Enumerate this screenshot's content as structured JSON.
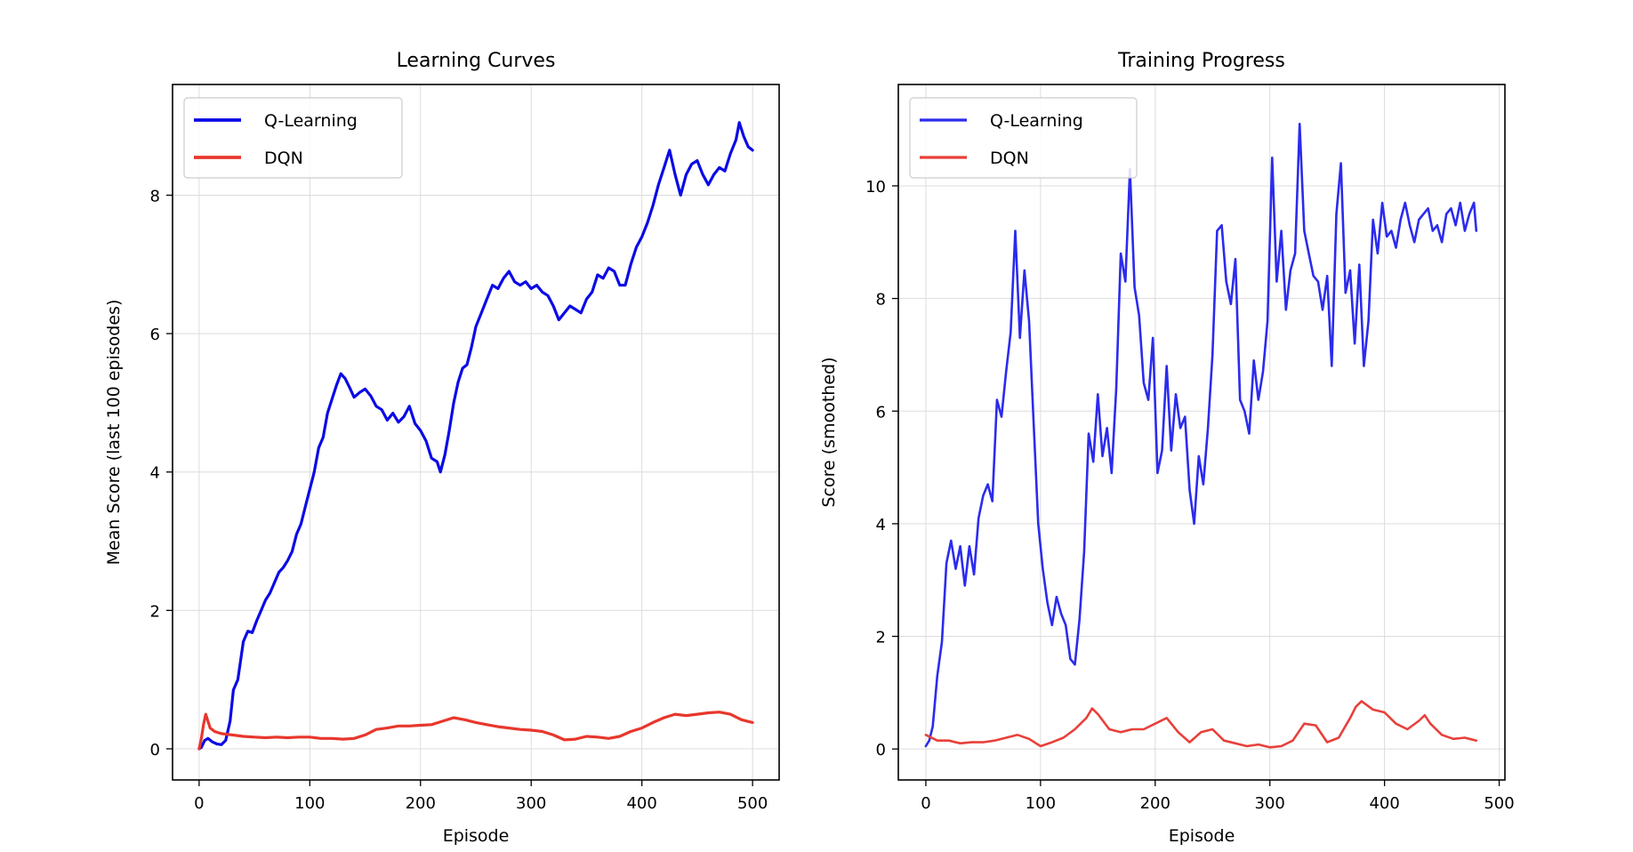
{
  "chart_data": [
    {
      "type": "line",
      "title": "Learning Curves",
      "xlabel": "Episode",
      "ylabel": "Mean Score (last 100 episodes)",
      "xlim": [
        -24,
        524
      ],
      "ylim": [
        -0.45,
        9.6
      ],
      "xticks": [
        "0",
        "100",
        "200",
        "300",
        "400",
        "500"
      ],
      "yticks": [
        "0",
        "2",
        "4",
        "6",
        "8"
      ],
      "grid": true,
      "legend": "upper-left",
      "series": [
        {
          "name": "Q-Learning",
          "color": "#0a0ae6",
          "x": [
            0,
            2,
            5,
            8,
            12,
            16,
            20,
            24,
            28,
            31,
            35,
            40,
            44,
            48,
            52,
            56,
            60,
            64,
            68,
            72,
            76,
            80,
            84,
            88,
            92,
            96,
            100,
            104,
            108,
            112,
            116,
            120,
            124,
            128,
            132,
            136,
            140,
            145,
            150,
            155,
            160,
            165,
            170,
            175,
            180,
            185,
            190,
            195,
            200,
            205,
            210,
            215,
            218,
            222,
            226,
            230,
            234,
            238,
            242,
            246,
            250,
            255,
            260,
            265,
            270,
            275,
            280,
            285,
            290,
            295,
            300,
            305,
            310,
            315,
            320,
            325,
            330,
            335,
            340,
            345,
            350,
            355,
            360,
            365,
            370,
            375,
            380,
            385,
            390,
            395,
            400,
            405,
            410,
            415,
            420,
            425,
            430,
            435,
            440,
            445,
            450,
            455,
            460,
            465,
            470,
            475,
            480,
            485,
            488,
            492,
            496,
            500
          ],
          "values": [
            0,
            0.02,
            0.12,
            0.15,
            0.1,
            0.07,
            0.06,
            0.12,
            0.4,
            0.85,
            1.0,
            1.55,
            1.7,
            1.68,
            1.85,
            2.0,
            2.15,
            2.25,
            2.4,
            2.55,
            2.62,
            2.72,
            2.85,
            3.1,
            3.25,
            3.5,
            3.75,
            4.0,
            4.35,
            4.5,
            4.85,
            5.05,
            5.25,
            5.42,
            5.35,
            5.22,
            5.08,
            5.15,
            5.2,
            5.1,
            4.95,
            4.9,
            4.75,
            4.85,
            4.72,
            4.8,
            4.95,
            4.7,
            4.6,
            4.45,
            4.2,
            4.15,
            4.0,
            4.25,
            4.6,
            5.0,
            5.3,
            5.5,
            5.55,
            5.8,
            6.1,
            6.3,
            6.5,
            6.7,
            6.65,
            6.8,
            6.9,
            6.75,
            6.7,
            6.75,
            6.65,
            6.7,
            6.6,
            6.55,
            6.4,
            6.2,
            6.3,
            6.4,
            6.35,
            6.3,
            6.5,
            6.6,
            6.85,
            6.8,
            6.95,
            6.9,
            6.7,
            6.7,
            7.0,
            7.25,
            7.4,
            7.6,
            7.85,
            8.15,
            8.4,
            8.65,
            8.3,
            8.0,
            8.3,
            8.45,
            8.5,
            8.3,
            8.15,
            8.3,
            8.4,
            8.35,
            8.6,
            8.8,
            9.05,
            8.85,
            8.7,
            8.65
          ]
        },
        {
          "name": "DQN",
          "color": "#e8372c",
          "x": [
            0,
            2,
            4,
            6,
            8,
            10,
            14,
            20,
            30,
            40,
            50,
            60,
            70,
            80,
            90,
            100,
            110,
            120,
            130,
            140,
            150,
            160,
            170,
            180,
            190,
            200,
            210,
            220,
            230,
            240,
            250,
            260,
            270,
            280,
            290,
            300,
            310,
            320,
            330,
            340,
            350,
            360,
            370,
            380,
            390,
            400,
            410,
            420,
            430,
            440,
            450,
            460,
            470,
            480,
            490,
            500
          ],
          "values": [
            0,
            0.15,
            0.35,
            0.5,
            0.4,
            0.3,
            0.25,
            0.22,
            0.2,
            0.18,
            0.17,
            0.16,
            0.17,
            0.16,
            0.17,
            0.17,
            0.15,
            0.15,
            0.14,
            0.15,
            0.2,
            0.28,
            0.3,
            0.33,
            0.33,
            0.34,
            0.35,
            0.4,
            0.45,
            0.42,
            0.38,
            0.35,
            0.32,
            0.3,
            0.28,
            0.27,
            0.25,
            0.2,
            0.13,
            0.14,
            0.18,
            0.17,
            0.15,
            0.18,
            0.25,
            0.3,
            0.38,
            0.45,
            0.5,
            0.48,
            0.5,
            0.52,
            0.53,
            0.5,
            0.42,
            0.38
          ]
        }
      ]
    },
    {
      "type": "line",
      "title": "Training Progress",
      "xlabel": "Episode",
      "ylabel": "Score (smoothed)",
      "xlim": [
        -24,
        505
      ],
      "ylim": [
        -0.55,
        11.8
      ],
      "xticks": [
        "0",
        "100",
        "200",
        "300",
        "400",
        "500"
      ],
      "yticks": [
        "0",
        "2",
        "4",
        "6",
        "8",
        "10"
      ],
      "grid": true,
      "legend": "upper-left",
      "series": [
        {
          "name": "Q-Learning",
          "color": "#2b2bee",
          "x": [
            0,
            3,
            6,
            10,
            14,
            18,
            22,
            26,
            30,
            34,
            38,
            42,
            46,
            50,
            54,
            58,
            62,
            66,
            70,
            74,
            78,
            82,
            86,
            90,
            94,
            98,
            102,
            106,
            110,
            114,
            118,
            122,
            126,
            130,
            134,
            138,
            142,
            146,
            150,
            154,
            158,
            162,
            166,
            170,
            174,
            178,
            182,
            186,
            190,
            194,
            198,
            202,
            206,
            210,
            214,
            218,
            222,
            226,
            230,
            234,
            238,
            242,
            246,
            250,
            254,
            258,
            262,
            266,
            270,
            274,
            278,
            282,
            286,
            290,
            294,
            298,
            302,
            306,
            310,
            314,
            318,
            322,
            326,
            330,
            334,
            338,
            342,
            346,
            350,
            354,
            358,
            362,
            366,
            370,
            374,
            378,
            382,
            386,
            390,
            394,
            398,
            402,
            406,
            410,
            414,
            418,
            422,
            426,
            430,
            434,
            438,
            442,
            446,
            450,
            454,
            458,
            462,
            466,
            470,
            474,
            478,
            480
          ],
          "values": [
            0.05,
            0.15,
            0.4,
            1.3,
            1.9,
            3.3,
            3.7,
            3.2,
            3.6,
            2.9,
            3.6,
            3.1,
            4.1,
            4.5,
            4.7,
            4.4,
            6.2,
            5.9,
            6.7,
            7.4,
            9.2,
            7.3,
            8.5,
            7.6,
            5.8,
            4.0,
            3.2,
            2.6,
            2.2,
            2.7,
            2.4,
            2.2,
            1.6,
            1.5,
            2.3,
            3.5,
            5.6,
            5.1,
            6.3,
            5.2,
            5.7,
            4.9,
            6.4,
            8.8,
            8.3,
            10.3,
            8.2,
            7.7,
            6.5,
            6.2,
            7.3,
            4.9,
            5.3,
            6.8,
            5.3,
            6.3,
            5.7,
            5.9,
            4.6,
            4.0,
            5.2,
            4.7,
            5.7,
            7.0,
            9.2,
            9.3,
            8.3,
            7.9,
            8.7,
            6.2,
            6.0,
            5.6,
            6.9,
            6.2,
            6.7,
            7.6,
            10.5,
            8.3,
            9.2,
            7.8,
            8.5,
            8.8,
            11.1,
            9.2,
            8.8,
            8.4,
            8.3,
            7.8,
            8.4,
            6.8,
            9.5,
            10.4,
            8.1,
            8.5,
            7.2,
            8.6,
            6.8,
            7.6,
            9.4,
            8.8,
            9.7,
            9.1,
            9.2,
            8.9,
            9.4,
            9.7,
            9.3,
            9.0,
            9.4,
            9.5,
            9.6,
            9.2,
            9.3,
            9.0,
            9.5,
            9.6,
            9.3,
            9.7,
            9.2,
            9.5,
            9.7,
            9.2
          ],
          "note": "series truncated display; visible shape approximated"
        },
        {
          "name": "DQN",
          "color": "#e8403a",
          "x": [
            0,
            10,
            20,
            30,
            40,
            50,
            60,
            70,
            80,
            90,
            100,
            110,
            120,
            130,
            140,
            145,
            150,
            160,
            170,
            180,
            190,
            200,
            210,
            220,
            230,
            240,
            250,
            260,
            270,
            280,
            290,
            300,
            310,
            320,
            330,
            340,
            350,
            360,
            370,
            375,
            380,
            390,
            400,
            410,
            420,
            430,
            435,
            440,
            450,
            460,
            470,
            480
          ],
          "values": [
            0.25,
            0.15,
            0.15,
            0.1,
            0.12,
            0.12,
            0.15,
            0.2,
            0.25,
            0.18,
            0.05,
            0.12,
            0.2,
            0.35,
            0.55,
            0.72,
            0.62,
            0.35,
            0.3,
            0.35,
            0.35,
            0.45,
            0.55,
            0.3,
            0.12,
            0.3,
            0.35,
            0.15,
            0.1,
            0.05,
            0.08,
            0.03,
            0.05,
            0.15,
            0.45,
            0.42,
            0.12,
            0.2,
            0.55,
            0.75,
            0.85,
            0.7,
            0.65,
            0.45,
            0.35,
            0.5,
            0.6,
            0.45,
            0.25,
            0.18,
            0.2,
            0.15
          ]
        }
      ]
    }
  ]
}
